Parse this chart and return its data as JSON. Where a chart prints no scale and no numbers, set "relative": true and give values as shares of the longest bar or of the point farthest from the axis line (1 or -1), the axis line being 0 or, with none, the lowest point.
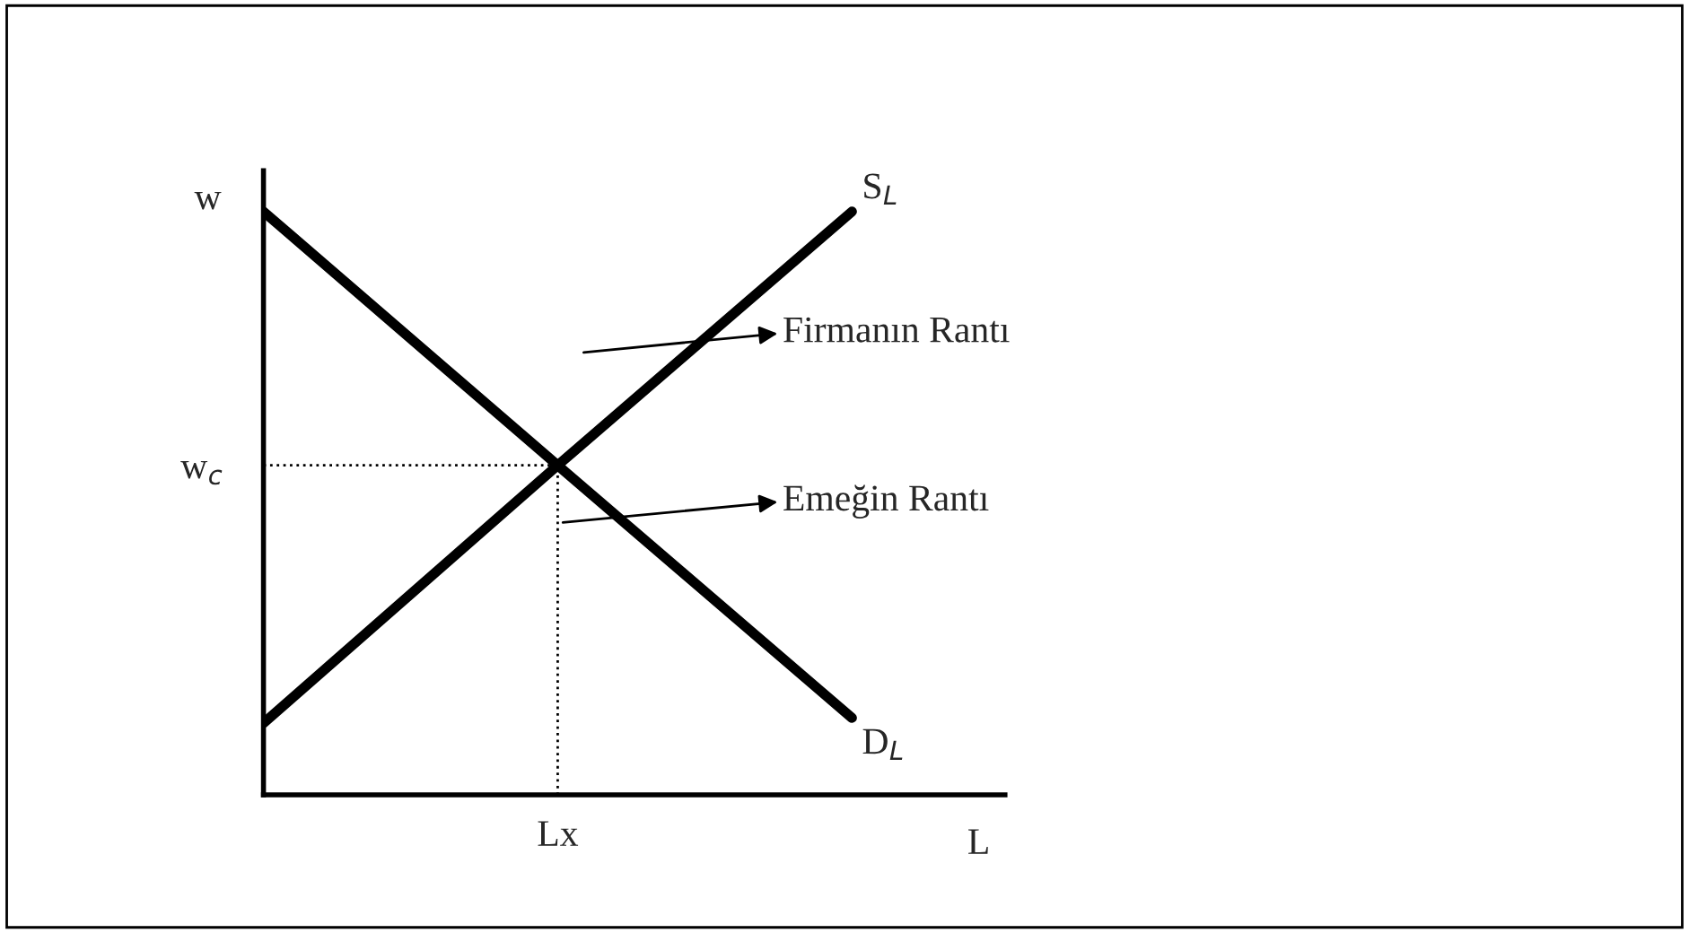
{
  "chart_data": {
    "type": "line",
    "relative": true,
    "xlabel": "L",
    "ylabel": "w",
    "categories": [
      null,
      null,
      null
    ],
    "series": [
      {
        "name": "D$_{L}$",
        "color": "#000000",
        "values": [
          1,
          0.565,
          0.132
        ]
      },
      {
        "name": "S$_{L}$",
        "color": "#000000",
        "values": [
          0.123,
          0.565,
          1
        ]
      }
    ],
    "ref_lines": [
      {
        "axis": "y",
        "value": 0.565,
        "label": "w$_{c}$",
        "line_style": "dotted",
        "color": "#000000"
      }
    ],
    "annotations": [
      "Firmanın Rantı",
      "Emeğin Rantı",
      "Lx"
    ],
    "grid": false,
    "legend": false,
    "marker": "none",
    "line_style": "solid"
  }
}
